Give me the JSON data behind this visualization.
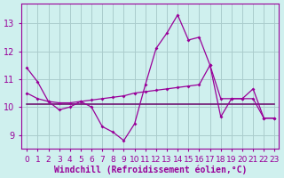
{
  "title": "",
  "xlabel": "Windchill (Refroidissement éolien,°C)",
  "ylabel": "",
  "background_color": "#cff0ee",
  "grid_color": "#aacccc",
  "line_color": "#990099",
  "flat_line_color": "#660066",
  "xlim_min": -0.5,
  "xlim_max": 23.4,
  "ylim": [
    8.5,
    13.7
  ],
  "yticks": [
    9,
    10,
    11,
    12,
    13
  ],
  "xticks": [
    0,
    1,
    2,
    3,
    4,
    5,
    6,
    7,
    8,
    9,
    10,
    11,
    12,
    13,
    14,
    15,
    16,
    17,
    18,
    19,
    20,
    21,
    22,
    23
  ],
  "series1_x": [
    0,
    1,
    2,
    3,
    4,
    5,
    6,
    7,
    8,
    9,
    10,
    11,
    12,
    13,
    14,
    15,
    16,
    17,
    18,
    19,
    20,
    21,
    22,
    23
  ],
  "series1_y": [
    11.4,
    10.9,
    10.2,
    9.9,
    10.0,
    10.2,
    10.0,
    9.3,
    9.1,
    8.8,
    9.4,
    10.8,
    12.1,
    12.65,
    13.3,
    12.4,
    12.5,
    11.5,
    9.65,
    10.3,
    10.3,
    10.65,
    9.6,
    9.6
  ],
  "series2_x": [
    0,
    23
  ],
  "series2_y": [
    10.1,
    10.1
  ],
  "series3_x": [
    0,
    1,
    2,
    3,
    4,
    5,
    6,
    7,
    8,
    9,
    10,
    11,
    12,
    13,
    14,
    15,
    16,
    17,
    18,
    19,
    20,
    21,
    22,
    23
  ],
  "series3_y": [
    10.5,
    10.3,
    10.2,
    10.15,
    10.15,
    10.2,
    10.25,
    10.3,
    10.35,
    10.4,
    10.5,
    10.55,
    10.6,
    10.65,
    10.7,
    10.75,
    10.8,
    11.5,
    10.3,
    10.3,
    10.3,
    10.3,
    9.6,
    9.6
  ],
  "xlabel_fontsize": 7.0,
  "tick_fontsize": 6.5,
  "linewidth": 0.9,
  "marker": "D",
  "markersize": 2.0
}
